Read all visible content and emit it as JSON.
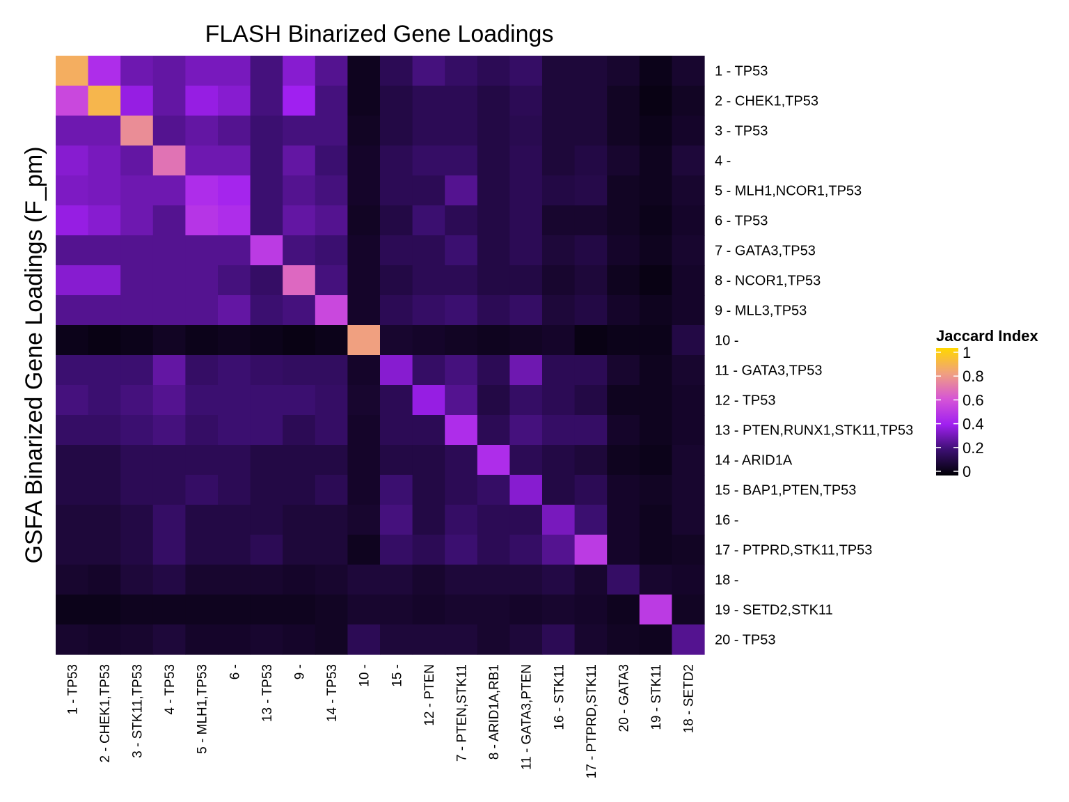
{
  "chart_data": {
    "type": "heatmap",
    "title": "FLASH Binarized Gene Loadings",
    "ylabel": "GSFA Binarized Gene Loadings (F_pm)",
    "xlabel": "",
    "rows": [
      "1 - TP53",
      "2 - CHEK1,TP53",
      "3 - TP53",
      "4 -",
      "5 - MLH1,NCOR1,TP53",
      "6 - TP53",
      "7 - GATA3,TP53",
      "8 - NCOR1,TP53",
      "9 - MLL3,TP53",
      "10 -",
      "11 - GATA3,TP53",
      "12 - TP53",
      "13 - PTEN,RUNX1,STK11,TP53",
      "14 - ARID1A",
      "15 - BAP1,PTEN,TP53",
      "16 -",
      "17 - PTPRD,STK11,TP53",
      "18 -",
      "19 - SETD2,STK11",
      "20 - TP53"
    ],
    "columns": [
      "1 - TP53",
      "2 - CHEK1,TP53",
      "3 - STK11,TP53",
      "4 - TP53",
      "5 - MLH1,TP53",
      "6 -",
      "13 - TP53",
      "9 -",
      "14 - TP53",
      "10 -",
      "15 -",
      "12 - PTEN",
      "7 - PTEN,STK11",
      "8 - ARID1A,RB1",
      "11 - GATA3,PTEN",
      "16 - STK11",
      "17 - PTPRD,STK11",
      "20 - GATA3",
      "19 - STK11",
      "18 - SETD2"
    ],
    "values": [
      [
        0.85,
        0.45,
        0.3,
        0.28,
        0.32,
        0.32,
        0.22,
        0.35,
        0.25,
        0.05,
        0.15,
        0.22,
        0.18,
        0.15,
        0.18,
        0.1,
        0.1,
        0.08,
        0.04,
        0.08
      ],
      [
        0.55,
        0.88,
        0.38,
        0.28,
        0.38,
        0.35,
        0.22,
        0.4,
        0.22,
        0.05,
        0.12,
        0.15,
        0.15,
        0.12,
        0.15,
        0.1,
        0.1,
        0.06,
        0.03,
        0.06
      ],
      [
        0.3,
        0.3,
        0.75,
        0.25,
        0.28,
        0.25,
        0.2,
        0.22,
        0.22,
        0.06,
        0.12,
        0.15,
        0.15,
        0.12,
        0.14,
        0.1,
        0.1,
        0.06,
        0.04,
        0.07
      ],
      [
        0.35,
        0.32,
        0.28,
        0.68,
        0.3,
        0.3,
        0.2,
        0.28,
        0.2,
        0.07,
        0.15,
        0.18,
        0.18,
        0.12,
        0.15,
        0.1,
        0.12,
        0.08,
        0.05,
        0.1
      ],
      [
        0.33,
        0.32,
        0.3,
        0.3,
        0.45,
        0.42,
        0.2,
        0.25,
        0.22,
        0.07,
        0.15,
        0.15,
        0.25,
        0.12,
        0.15,
        0.12,
        0.13,
        0.06,
        0.05,
        0.08
      ],
      [
        0.38,
        0.35,
        0.3,
        0.25,
        0.48,
        0.45,
        0.2,
        0.28,
        0.25,
        0.06,
        0.12,
        0.2,
        0.15,
        0.12,
        0.15,
        0.08,
        0.08,
        0.06,
        0.04,
        0.07
      ],
      [
        0.25,
        0.25,
        0.25,
        0.25,
        0.25,
        0.25,
        0.5,
        0.22,
        0.2,
        0.07,
        0.15,
        0.15,
        0.2,
        0.12,
        0.15,
        0.1,
        0.12,
        0.07,
        0.05,
        0.08
      ],
      [
        0.35,
        0.35,
        0.25,
        0.25,
        0.25,
        0.22,
        0.18,
        0.65,
        0.22,
        0.07,
        0.12,
        0.15,
        0.15,
        0.12,
        0.12,
        0.08,
        0.1,
        0.05,
        0.03,
        0.07
      ],
      [
        0.25,
        0.25,
        0.25,
        0.25,
        0.25,
        0.28,
        0.2,
        0.22,
        0.55,
        0.07,
        0.15,
        0.18,
        0.2,
        0.15,
        0.18,
        0.1,
        0.12,
        0.07,
        0.05,
        0.07
      ],
      [
        0.04,
        0.03,
        0.04,
        0.06,
        0.04,
        0.05,
        0.04,
        0.03,
        0.04,
        0.8,
        0.08,
        0.07,
        0.06,
        0.05,
        0.06,
        0.07,
        0.03,
        0.04,
        0.04,
        0.12
      ],
      [
        0.2,
        0.2,
        0.2,
        0.28,
        0.18,
        0.2,
        0.18,
        0.17,
        0.17,
        0.07,
        0.35,
        0.18,
        0.22,
        0.15,
        0.3,
        0.15,
        0.15,
        0.08,
        0.05,
        0.08
      ],
      [
        0.22,
        0.2,
        0.22,
        0.25,
        0.2,
        0.2,
        0.2,
        0.2,
        0.18,
        0.08,
        0.15,
        0.38,
        0.25,
        0.12,
        0.18,
        0.15,
        0.12,
        0.05,
        0.05,
        0.07
      ],
      [
        0.18,
        0.18,
        0.2,
        0.22,
        0.18,
        0.2,
        0.2,
        0.15,
        0.18,
        0.07,
        0.15,
        0.15,
        0.45,
        0.15,
        0.22,
        0.18,
        0.18,
        0.07,
        0.05,
        0.07
      ],
      [
        0.12,
        0.12,
        0.15,
        0.15,
        0.15,
        0.15,
        0.12,
        0.12,
        0.12,
        0.07,
        0.12,
        0.12,
        0.15,
        0.45,
        0.15,
        0.12,
        0.1,
        0.05,
        0.04,
        0.08
      ],
      [
        0.12,
        0.12,
        0.15,
        0.15,
        0.18,
        0.15,
        0.12,
        0.12,
        0.15,
        0.07,
        0.2,
        0.12,
        0.15,
        0.18,
        0.35,
        0.12,
        0.15,
        0.07,
        0.06,
        0.08
      ],
      [
        0.1,
        0.1,
        0.12,
        0.18,
        0.12,
        0.12,
        0.12,
        0.1,
        0.1,
        0.08,
        0.22,
        0.12,
        0.18,
        0.15,
        0.15,
        0.32,
        0.2,
        0.07,
        0.05,
        0.08
      ],
      [
        0.1,
        0.1,
        0.12,
        0.18,
        0.12,
        0.12,
        0.15,
        0.1,
        0.1,
        0.05,
        0.18,
        0.15,
        0.2,
        0.15,
        0.18,
        0.25,
        0.5,
        0.07,
        0.05,
        0.06
      ],
      [
        0.08,
        0.07,
        0.1,
        0.12,
        0.08,
        0.08,
        0.08,
        0.07,
        0.08,
        0.1,
        0.1,
        0.08,
        0.1,
        0.1,
        0.1,
        0.12,
        0.08,
        0.18,
        0.08,
        0.07
      ],
      [
        0.04,
        0.04,
        0.05,
        0.05,
        0.05,
        0.05,
        0.05,
        0.05,
        0.06,
        0.08,
        0.08,
        0.07,
        0.08,
        0.08,
        0.07,
        0.08,
        0.07,
        0.05,
        0.5,
        0.06
      ],
      [
        0.08,
        0.07,
        0.08,
        0.1,
        0.07,
        0.07,
        0.08,
        0.07,
        0.06,
        0.15,
        0.1,
        0.1,
        0.1,
        0.08,
        0.1,
        0.15,
        0.08,
        0.06,
        0.05,
        0.25
      ]
    ],
    "legend": {
      "title": "Jaccard Index",
      "ticks": [
        "1",
        "0.8",
        "0.6",
        "0.4",
        "0.2",
        "0"
      ],
      "range": [
        0,
        1
      ],
      "placement": "right"
    },
    "colors": [
      "#000004",
      "#3b0f70",
      "#a020f0",
      "#d655d6",
      "#f0a080",
      "#ffd700"
    ]
  }
}
